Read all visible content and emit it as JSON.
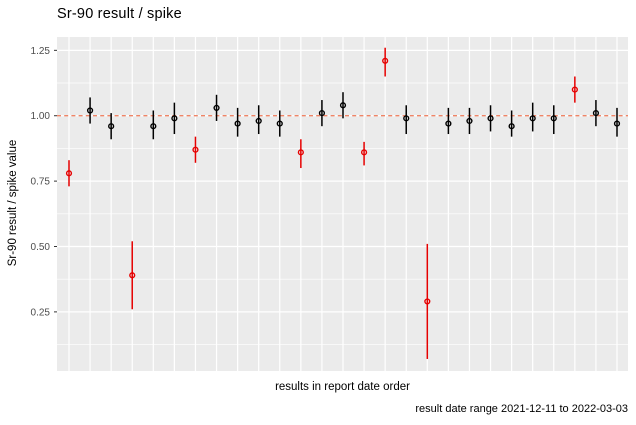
{
  "title": "Sr-90 result / spike",
  "axes": {
    "y_title": "Sr-90 result / spike value",
    "x_title": "results in report date order"
  },
  "caption": "result date range 2021-12-11 to 2022-03-03",
  "colors": {
    "panel_bg": "#EBEBEB",
    "grid": "#FFFFFF",
    "tick_text": "#4D4D4D",
    "axis_tick_mark": "#333333",
    "reference_line": "#EF8466",
    "point_pass": "#000000",
    "point_flag": "#E60000"
  },
  "chart_data": {
    "type": "scatter",
    "subtype": "pointrange-errorbar",
    "title": "Sr-90 result / spike",
    "xlabel": "results in report date order",
    "ylabel": "Sr-90 result / spike value",
    "legend": "none",
    "grid": "on",
    "x_tick_labels": "none (ordinal index 1..27)",
    "ylim": [
      0.024,
      1.301
    ],
    "y_ticks": [
      {
        "v": 0.25,
        "label": "0.25"
      },
      {
        "v": 0.5,
        "label": "0.50"
      },
      {
        "v": 0.75,
        "label": "0.75"
      },
      {
        "v": 1.0,
        "label": "1.00"
      },
      {
        "v": 1.25,
        "label": "1.25"
      }
    ],
    "y_minor_gridlines": [
      0.125,
      0.375,
      0.625,
      0.875,
      1.125
    ],
    "reference_line": {
      "y": 1.0,
      "style": "dashed",
      "color": "#EF8466"
    },
    "points": [
      {
        "i": 1,
        "value": 0.78,
        "lo": 0.73,
        "hi": 0.83,
        "flag": "red"
      },
      {
        "i": 2,
        "value": 1.02,
        "lo": 0.97,
        "hi": 1.07,
        "flag": "black"
      },
      {
        "i": 3,
        "value": 0.96,
        "lo": 0.91,
        "hi": 1.01,
        "flag": "black"
      },
      {
        "i": 4,
        "value": 0.39,
        "lo": 0.26,
        "hi": 0.52,
        "flag": "red"
      },
      {
        "i": 5,
        "value": 0.96,
        "lo": 0.91,
        "hi": 1.02,
        "flag": "black"
      },
      {
        "i": 6,
        "value": 0.99,
        "lo": 0.93,
        "hi": 1.05,
        "flag": "black"
      },
      {
        "i": 7,
        "value": 0.87,
        "lo": 0.82,
        "hi": 0.92,
        "flag": "red"
      },
      {
        "i": 8,
        "value": 1.03,
        "lo": 0.98,
        "hi": 1.08,
        "flag": "black"
      },
      {
        "i": 9,
        "value": 0.97,
        "lo": 0.92,
        "hi": 1.03,
        "flag": "black"
      },
      {
        "i": 10,
        "value": 0.98,
        "lo": 0.93,
        "hi": 1.04,
        "flag": "black"
      },
      {
        "i": 11,
        "value": 0.97,
        "lo": 0.92,
        "hi": 1.02,
        "flag": "black"
      },
      {
        "i": 12,
        "value": 0.86,
        "lo": 0.8,
        "hi": 0.91,
        "flag": "red"
      },
      {
        "i": 13,
        "value": 1.01,
        "lo": 0.96,
        "hi": 1.06,
        "flag": "black"
      },
      {
        "i": 14,
        "value": 1.04,
        "lo": 0.99,
        "hi": 1.09,
        "flag": "black"
      },
      {
        "i": 15,
        "value": 0.86,
        "lo": 0.81,
        "hi": 0.9,
        "flag": "red"
      },
      {
        "i": 16,
        "value": 1.21,
        "lo": 1.15,
        "hi": 1.26,
        "flag": "red"
      },
      {
        "i": 17,
        "value": 0.99,
        "lo": 0.93,
        "hi": 1.04,
        "flag": "black"
      },
      {
        "i": 18,
        "value": 0.29,
        "lo": 0.07,
        "hi": 0.51,
        "flag": "red"
      },
      {
        "i": 19,
        "value": 0.97,
        "lo": 0.93,
        "hi": 1.03,
        "flag": "black"
      },
      {
        "i": 20,
        "value": 0.98,
        "lo": 0.93,
        "hi": 1.03,
        "flag": "black"
      },
      {
        "i": 21,
        "value": 0.99,
        "lo": 0.94,
        "hi": 1.04,
        "flag": "black"
      },
      {
        "i": 22,
        "value": 0.96,
        "lo": 0.92,
        "hi": 1.02,
        "flag": "black"
      },
      {
        "i": 23,
        "value": 0.99,
        "lo": 0.94,
        "hi": 1.05,
        "flag": "black"
      },
      {
        "i": 24,
        "value": 0.99,
        "lo": 0.93,
        "hi": 1.04,
        "flag": "black"
      },
      {
        "i": 25,
        "value": 1.1,
        "lo": 1.05,
        "hi": 1.15,
        "flag": "red"
      },
      {
        "i": 26,
        "value": 1.01,
        "lo": 0.96,
        "hi": 1.06,
        "flag": "black"
      },
      {
        "i": 27,
        "value": 0.97,
        "lo": 0.92,
        "hi": 1.03,
        "flag": "black"
      }
    ]
  }
}
